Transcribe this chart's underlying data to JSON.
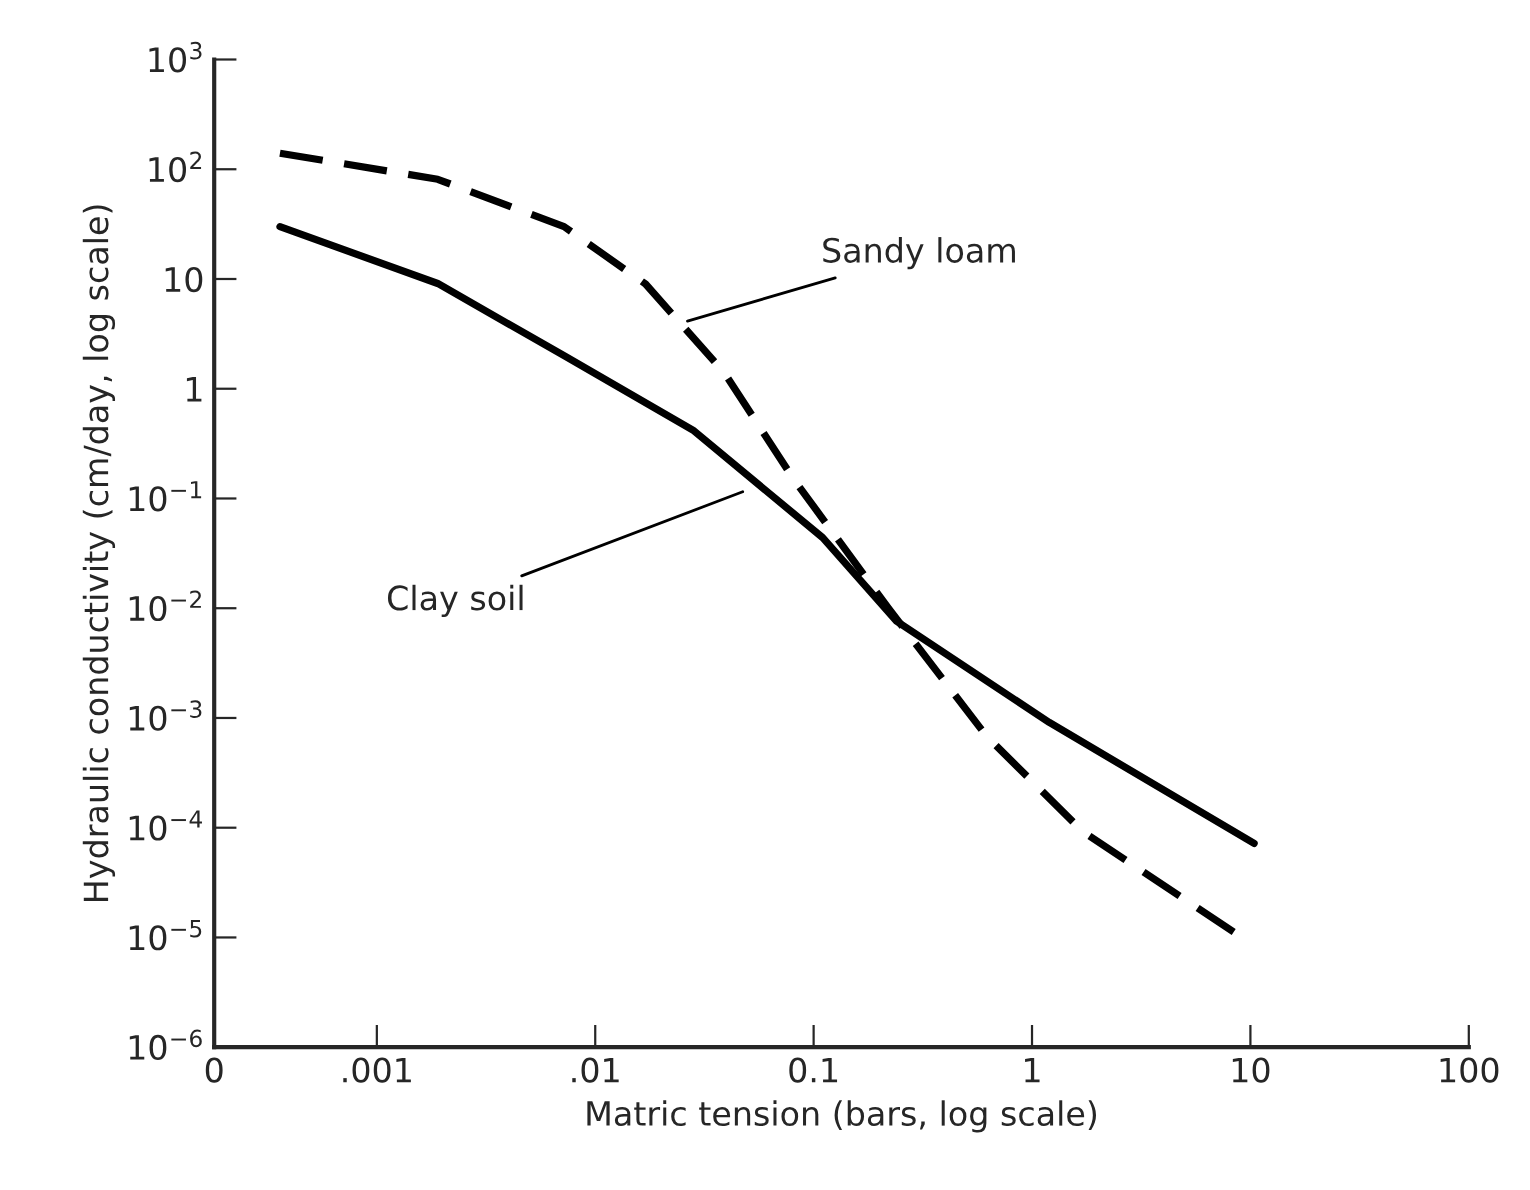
{
  "chart_data": {
    "type": "line",
    "xlabel": "Matric tension (bars, log scale)",
    "ylabel": "Hydraulic conductivity (cm/day, log scale)",
    "log": "xy",
    "grid": false,
    "legend": false,
    "marker": "none",
    "xlim": [
      0.00018,
      100
    ],
    "xticks": [
      {
        "value": 0.00018,
        "label": "0"
      },
      {
        "value": 0.001,
        "label": ".001"
      },
      {
        "value": 0.01,
        "label": ".01"
      },
      {
        "value": 0.1,
        "label": "0.1"
      },
      {
        "value": 1,
        "label": "1"
      },
      {
        "value": 10,
        "label": "10"
      },
      {
        "value": 100,
        "label": "100"
      }
    ],
    "ylim": [
      1e-06,
      1000
    ],
    "yticks": [
      {
        "value": 1000,
        "label": "10$^{3}$"
      },
      {
        "value": 100,
        "label": "10$^{2}$"
      },
      {
        "value": 10,
        "label": "10"
      },
      {
        "value": 1,
        "label": "1"
      },
      {
        "value": 0.1,
        "label": "10$^{−1}$"
      },
      {
        "value": 0.01,
        "label": "10$^{−2}$"
      },
      {
        "value": 0.001,
        "label": "10$^{−3}$"
      },
      {
        "value": 0.0001,
        "label": "10$^{−4}$"
      },
      {
        "value": 1e-05,
        "label": "10$^{−5}$"
      },
      {
        "value": 1e-06,
        "label": "10$^{−6}$"
      }
    ],
    "series": [
      {
        "color": "#000000",
        "line_style": "dashed",
        "x": [
          0.00036,
          0.0019,
          0.0072,
          0.017,
          0.039,
          0.081,
          0.22,
          0.62,
          1.7,
          8.5
        ],
        "values": [
          140,
          81,
          30,
          9,
          1.4,
          0.15,
          0.01,
          0.00068,
          9.3e-05,
          1.1e-05
        ]
      },
      {
        "color": "#000000",
        "line_style": "solid",
        "x": [
          0.00036,
          0.0019,
          0.0072,
          0.028,
          0.11,
          0.24,
          1.2,
          10.4
        ],
        "values": [
          30,
          9.1,
          2.0,
          0.42,
          0.044,
          0.0076,
          0.00091,
          7.2e-05
        ]
      }
    ],
    "annotations": [
      {
        "text": "Sandy loam",
        "x": 0.025,
        "y": 4
      },
      {
        "text": "Clay soil",
        "x": 0.05,
        "y": 0.12
      }
    ]
  }
}
